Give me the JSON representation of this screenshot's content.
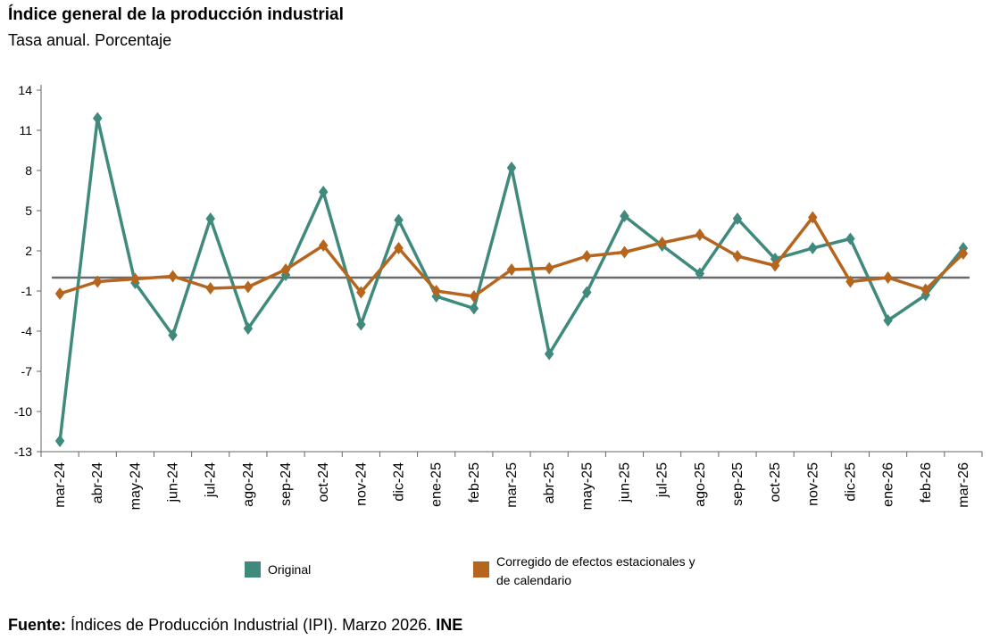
{
  "chart_data": {
    "type": "line",
    "title": "Índice general de la producción industrial",
    "subtitle": "Tasa anual. Porcentaje",
    "categories": [
      "mar-24",
      "abr-24",
      "may-24",
      "jun-24",
      "jul-24",
      "ago-24",
      "sep-24",
      "oct-24",
      "nov-24",
      "dic-24",
      "ene-25",
      "feb-25",
      "mar-25",
      "abr-25",
      "may-25",
      "jun-25",
      "jul-25",
      "ago-25",
      "sep-25",
      "oct-25",
      "nov-25",
      "dic-25",
      "ene-26",
      "feb-26",
      "mar-26"
    ],
    "y_ticks": [
      "14",
      "11",
      "8",
      "5",
      "2",
      "-1",
      "-4",
      "-7",
      "-10",
      "-13"
    ],
    "ylim": [
      -13,
      14
    ],
    "reference_line": 0,
    "series": [
      {
        "name": "Original",
        "color": "#3f8a7c",
        "values": [
          -12.2,
          11.9,
          -0.4,
          -4.3,
          4.4,
          -3.8,
          0.2,
          6.4,
          -3.5,
          4.3,
          -1.4,
          -2.3,
          8.2,
          -5.7,
          -1.1,
          4.6,
          2.4,
          0.3,
          4.4,
          1.4,
          2.2,
          2.9,
          -3.2,
          -1.3,
          2.2
        ]
      },
      {
        "name": "Corregido de efectos estacionales y de calendario",
        "color": "#b5651d",
        "values": [
          -1.2,
          -0.3,
          -0.1,
          0.1,
          -0.8,
          -0.7,
          0.6,
          2.4,
          -1.1,
          2.2,
          -1.0,
          -1.4,
          0.6,
          0.7,
          1.6,
          1.9,
          2.6,
          3.2,
          1.6,
          0.9,
          4.5,
          -0.3,
          0.0,
          -0.9,
          1.8
        ]
      }
    ],
    "legend": {
      "placement": "bottom",
      "original": "Original",
      "corrected": "Corregido de efectos estacionales y de calendario"
    },
    "grid": false
  },
  "source": {
    "label": "Fuente:",
    "text": "Índices de Producción Industrial (IPI). Marzo 2026.",
    "org": "INE"
  }
}
